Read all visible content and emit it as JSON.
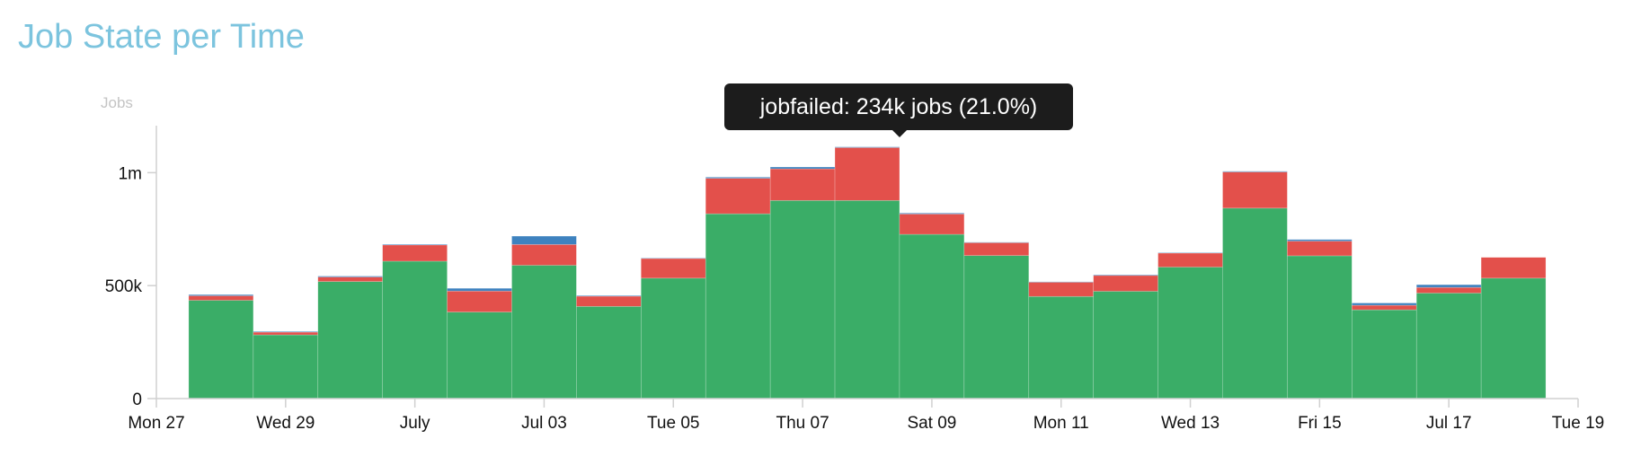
{
  "chart_data": {
    "type": "bar",
    "title": "Job State per Time",
    "ylabel": "Jobs",
    "xlabel": "",
    "ylim": [
      0,
      1200000
    ],
    "yticks": [
      {
        "value": 0,
        "label": "0"
      },
      {
        "value": 500000,
        "label": "500k"
      },
      {
        "value": 1000000,
        "label": "1m"
      }
    ],
    "xlim": [
      0,
      22
    ],
    "xticks": [
      {
        "x": 0,
        "label": "Mon 27"
      },
      {
        "x": 2,
        "label": "Wed 29"
      },
      {
        "x": 4,
        "label": "July"
      },
      {
        "x": 6,
        "label": "Jul 03"
      },
      {
        "x": 8,
        "label": "Tue 05"
      },
      {
        "x": 10,
        "label": "Thu 07"
      },
      {
        "x": 12,
        "label": "Sat 09"
      },
      {
        "x": 14,
        "label": "Mon 11"
      },
      {
        "x": 16,
        "label": "Wed 13"
      },
      {
        "x": 18,
        "label": "Fri 15"
      },
      {
        "x": 20,
        "label": "Jul 17"
      },
      {
        "x": 22,
        "label": "Tue 19"
      }
    ],
    "x": [
      1,
      2,
      3,
      4,
      5,
      6,
      7,
      8,
      9,
      10,
      11,
      12,
      13,
      14,
      15,
      16,
      17,
      18,
      19,
      20,
      21
    ],
    "stacked": true,
    "grid": false,
    "legend": "none",
    "series": [
      {
        "color": "#3aad67",
        "values": [
          435000,
          282000,
          518000,
          608000,
          383000,
          590000,
          408000,
          533000,
          818000,
          877000,
          877000,
          727000,
          633000,
          452000,
          475000,
          582000,
          843000,
          632000,
          393000,
          467000,
          533000
        ]
      },
      {
        "color": "#e3504b",
        "values": [
          20000,
          12000,
          20000,
          72000,
          93000,
          92000,
          45000,
          87000,
          157000,
          140000,
          234000,
          90000,
          57000,
          63000,
          70000,
          62000,
          160000,
          65000,
          20000,
          25000,
          92000
        ]
      },
      {
        "color": "#3e82bf",
        "values": [
          5000,
          3000,
          4000,
          3000,
          12000,
          37000,
          3000,
          2000,
          5000,
          8000,
          3000,
          4000,
          2000,
          2000,
          3000,
          2000,
          3000,
          7000,
          10000,
          12000,
          0
        ]
      }
    ],
    "tooltip": "jobfailed: 234k jobs (21.0%)"
  }
}
